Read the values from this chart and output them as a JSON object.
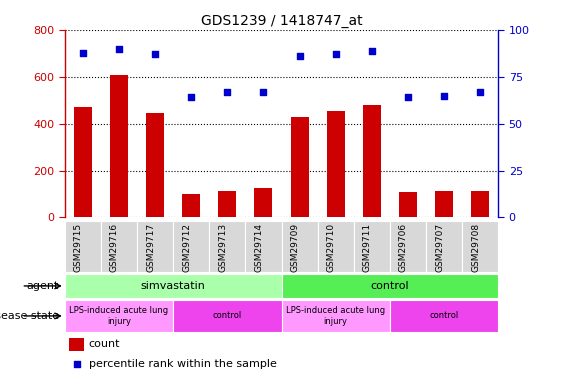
{
  "title": "GDS1239 / 1418747_at",
  "samples": [
    "GSM29715",
    "GSM29716",
    "GSM29717",
    "GSM29712",
    "GSM29713",
    "GSM29714",
    "GSM29709",
    "GSM29710",
    "GSM29711",
    "GSM29706",
    "GSM29707",
    "GSM29708"
  ],
  "counts": [
    470,
    610,
    445,
    100,
    115,
    125,
    430,
    455,
    480,
    110,
    115,
    115
  ],
  "percentiles": [
    88,
    90,
    87,
    64,
    67,
    67,
    86,
    87,
    89,
    64,
    65,
    67
  ],
  "bar_color": "#cc0000",
  "dot_color": "#0000cc",
  "ylim_left": [
    0,
    800
  ],
  "ylim_right": [
    0,
    100
  ],
  "yticks_left": [
    0,
    200,
    400,
    600,
    800
  ],
  "yticks_right": [
    0,
    25,
    50,
    75,
    100
  ],
  "agent_groups": [
    {
      "label": "simvastatin",
      "start": 0,
      "end": 6,
      "color": "#aaffaa"
    },
    {
      "label": "control",
      "start": 6,
      "end": 12,
      "color": "#55ee55"
    }
  ],
  "disease_groups": [
    {
      "label": "LPS-induced acute lung\ninjury",
      "start": 0,
      "end": 3,
      "color": "#ff99ff"
    },
    {
      "label": "control",
      "start": 3,
      "end": 6,
      "color": "#ee44ee"
    },
    {
      "label": "LPS-induced acute lung\ninjury",
      "start": 6,
      "end": 9,
      "color": "#ff99ff"
    },
    {
      "label": "control",
      "start": 9,
      "end": 12,
      "color": "#ee44ee"
    }
  ],
  "legend_count_color": "#cc0000",
  "legend_dot_color": "#0000cc",
  "left_tick_color": "#cc0000",
  "right_tick_color": "#0000cc",
  "bar_width": 0.5,
  "xlim": [
    -0.5,
    11.5
  ],
  "agent_light_color": "#aaffaa",
  "agent_dark_color": "#55ee55",
  "disease_light_color": "#ff99ff",
  "disease_dark_color": "#ee44ee"
}
